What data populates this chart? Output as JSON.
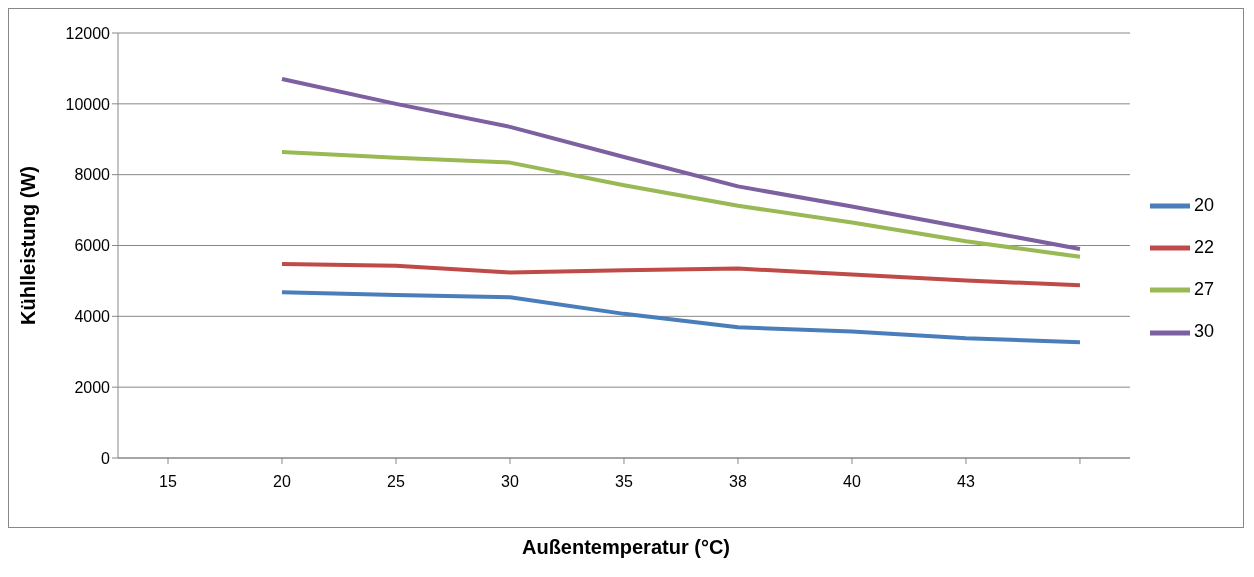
{
  "chart_data": {
    "type": "line",
    "xlabel": "Außentemperatur (°C)",
    "ylabel": "Kühlleistung (W)",
    "categories": [
      "15",
      "20",
      "25",
      "30",
      "35",
      "38",
      "40",
      "43",
      null
    ],
    "series": [
      {
        "name": "20",
        "color": "#4a7ebb",
        "values": [
          null,
          4680,
          4600,
          4540,
          4070,
          3690,
          3570,
          3380,
          3270
        ]
      },
      {
        "name": "22",
        "color": "#be4b48",
        "values": [
          null,
          5480,
          5430,
          5240,
          5300,
          5350,
          5180,
          5010,
          4880
        ]
      },
      {
        "name": "27",
        "color": "#98b954",
        "values": [
          null,
          8640,
          8480,
          8340,
          7700,
          7120,
          6650,
          6120,
          5680
        ]
      },
      {
        "name": "30",
        "color": "#7d60a0",
        "values": [
          null,
          10700,
          10000,
          9350,
          8500,
          7670,
          7100,
          6500,
          5900
        ]
      }
    ],
    "ylim": [
      0,
      12000
    ],
    "yticks": [
      0,
      2000,
      4000,
      6000,
      8000,
      10000,
      12000
    ],
    "grid": "y",
    "legend": "right",
    "marker": "none",
    "line_style": "solid"
  }
}
